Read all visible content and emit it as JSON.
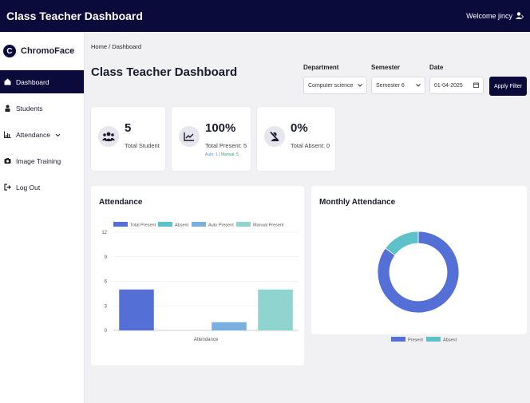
{
  "topbar": {
    "title": "Class Teacher Dashboard",
    "welcome": "Welcome jincy"
  },
  "sidebar": {
    "brand": "ChromoFace",
    "items": [
      {
        "label": "Dashboard",
        "icon": "dashboard-icon"
      },
      {
        "label": "Students",
        "icon": "student-icon"
      },
      {
        "label": "Attendance",
        "icon": "chart-icon"
      },
      {
        "label": "Image Training",
        "icon": "camera-icon"
      },
      {
        "label": "Log Out",
        "icon": "logout-icon"
      }
    ]
  },
  "breadcrumb": {
    "home": "Home",
    "sep": "/",
    "current": "Dashboard"
  },
  "page_title": "Class Teacher Dashboard",
  "filters": {
    "department": {
      "label": "Department",
      "value": "Computer science"
    },
    "semester": {
      "label": "Semester",
      "value": "Semester 6"
    },
    "date": {
      "label": "Date",
      "value": "01-04-2025"
    },
    "apply_label": "Apply Filter"
  },
  "cards": {
    "total_student": {
      "value": "5",
      "label": "Total Student"
    },
    "total_present": {
      "value": "100%",
      "label": "Total Present: 5",
      "auto": "Auto: 1",
      "sep": "|",
      "manual": "Manual: 5"
    },
    "total_absent": {
      "value": "0%",
      "label": "Total Absent: 0"
    }
  },
  "attendance_panel": {
    "title": "Attendance"
  },
  "monthly_panel": {
    "title": "Monthly Attendance"
  },
  "colors": {
    "navy": "#0b0b3b",
    "total_present": "#5470d6",
    "absent": "#5ec0c8",
    "auto_present": "#7ab0e0",
    "manual_present": "#8fd4cf"
  },
  "chart_data": [
    {
      "type": "bar",
      "title": "Attendance",
      "categories": [
        "Attendance"
      ],
      "series": [
        {
          "name": "Total Present",
          "values": [
            5
          ],
          "color": "#5470d6"
        },
        {
          "name": "Absent",
          "values": [
            0
          ],
          "color": "#5ec0c8"
        },
        {
          "name": "Auto Present",
          "values": [
            1
          ],
          "color": "#7ab0e0"
        },
        {
          "name": "Manual Present",
          "values": [
            5
          ],
          "color": "#8fd4cf"
        }
      ],
      "yticks": [
        "0",
        "3",
        "6",
        "9",
        "12"
      ],
      "ylim": [
        0,
        12
      ],
      "grid": true,
      "legend": "top"
    },
    {
      "type": "pie",
      "title": "Monthly Attendance",
      "labels": [
        "Present",
        "Absent"
      ],
      "values": [
        85,
        15
      ],
      "colors": [
        "#5470d6",
        "#5ec0c8"
      ],
      "donut": true,
      "legend": "bottom"
    }
  ]
}
